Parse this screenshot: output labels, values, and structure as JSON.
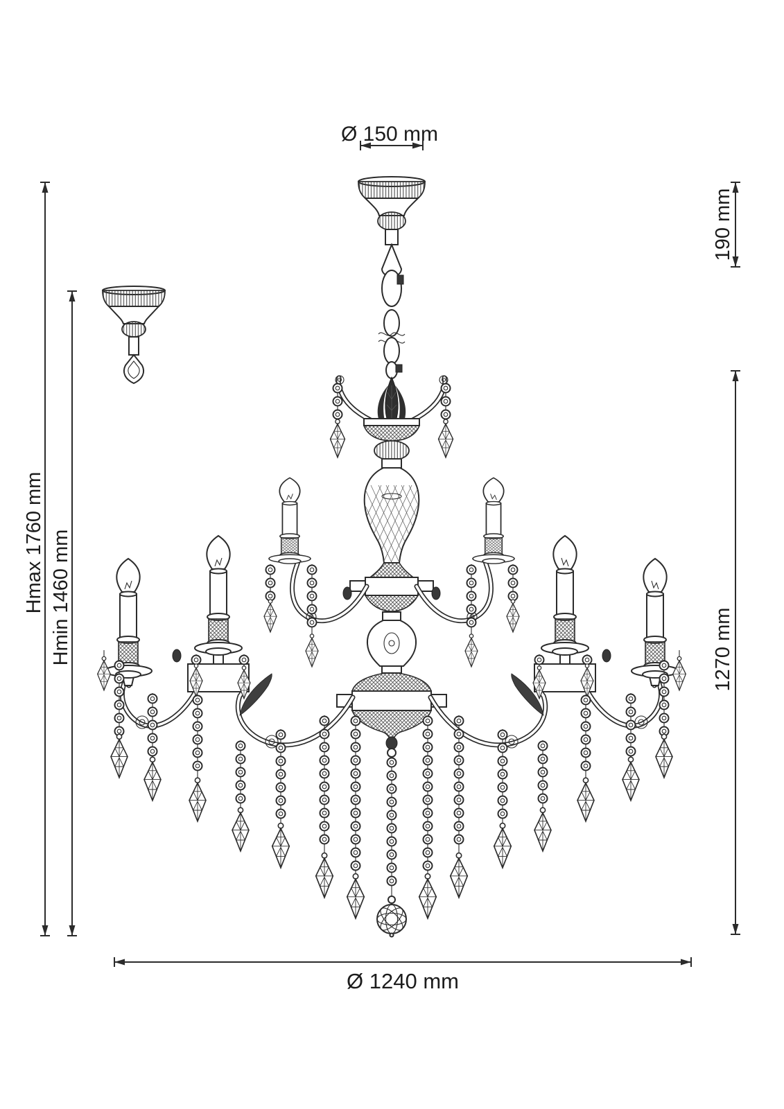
{
  "drawing": {
    "background": "#ffffff",
    "line_color": "#2b2b2b",
    "labels": {
      "canopy_diameter": "Ø 150 mm",
      "canopy_height": "190 mm",
      "max_height": "Hmax 1760 mm",
      "min_height": "Hmin 1460 mm",
      "fixture_height": "1270 mm",
      "fixture_diameter": "Ø 1240 mm"
    },
    "values": {
      "canopy_diameter_mm": 150,
      "canopy_height_mm": 190,
      "max_height_mm": 1760,
      "min_height_mm": 1460,
      "fixture_height_mm": 1270,
      "fixture_diameter_mm": 1240,
      "unit": "mm"
    }
  }
}
